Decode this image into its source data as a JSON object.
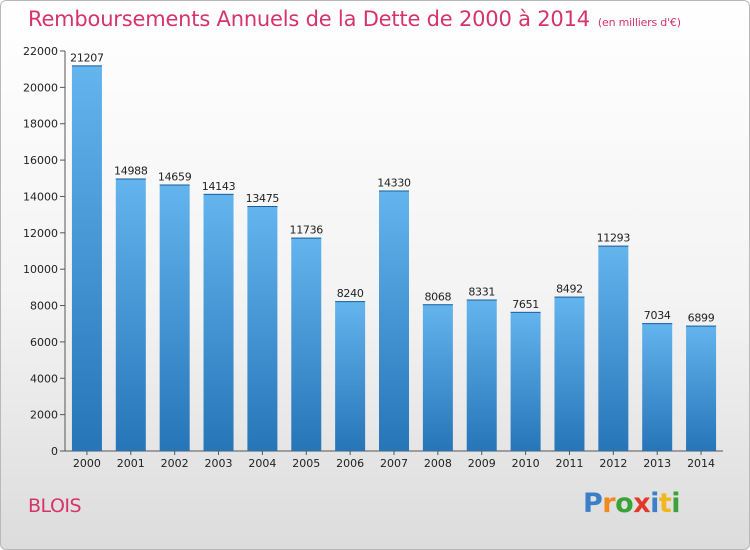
{
  "header": {
    "title": "Remboursements Annuels de la Dette de 2000 à 2014",
    "subtitle": "(en milliers d'€)"
  },
  "footer": {
    "city": "BLOIS",
    "logo_text": "Proxiti"
  },
  "colors": {
    "title": "#d6336c",
    "bar_light": "#64b4ee",
    "bar_dark": "#2675b8",
    "logo": [
      "#3a7fc8",
      "#f08a1c",
      "#3aa236",
      "#e23a2a",
      "#3a7fc8",
      "#f0b81c",
      "#3aa236"
    ]
  },
  "chart_data": {
    "type": "bar",
    "categories": [
      "2000",
      "2001",
      "2002",
      "2003",
      "2004",
      "2005",
      "2006",
      "2007",
      "2008",
      "2009",
      "2010",
      "2011",
      "2012",
      "2013",
      "2014"
    ],
    "values": [
      21207,
      14988,
      14659,
      14143,
      13475,
      11736,
      8240,
      14330,
      8068,
      8331,
      7651,
      8492,
      11293,
      7034,
      6899
    ],
    "yticks": [
      "0",
      "2000",
      "4000",
      "6000",
      "8000",
      "10000",
      "12000",
      "14000",
      "16000",
      "18000",
      "20000",
      "22000"
    ],
    "ylim": [
      0,
      22000
    ],
    "grid": false,
    "legend": "none"
  }
}
